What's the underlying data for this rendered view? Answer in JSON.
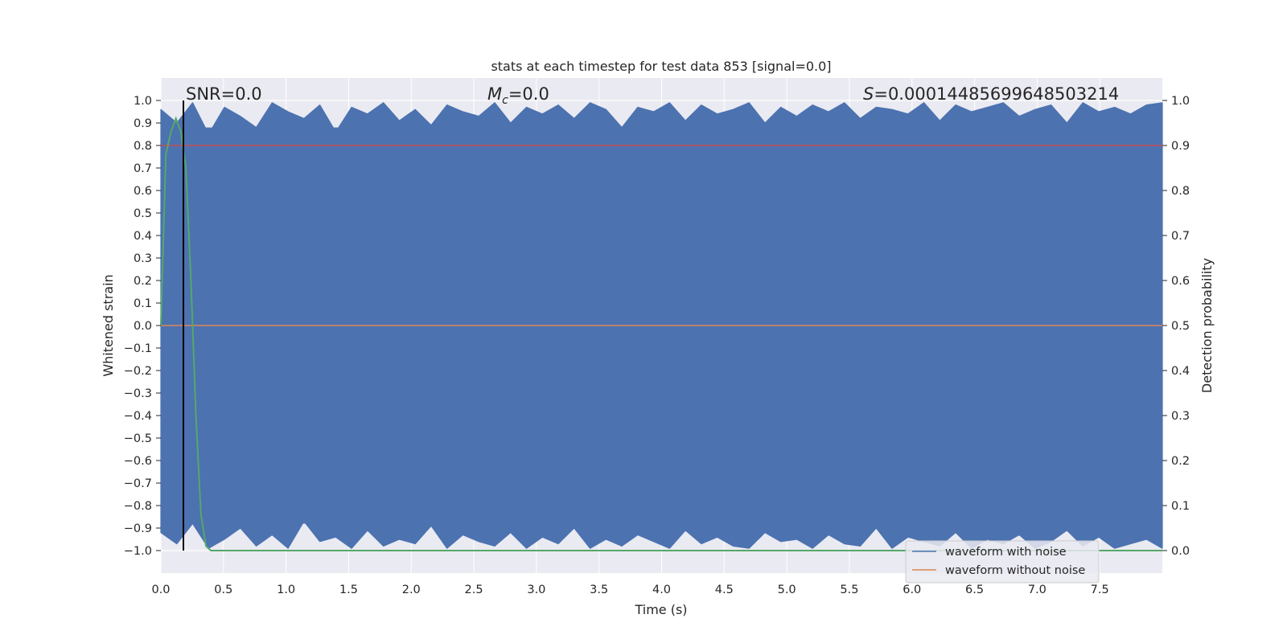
{
  "chart_data": {
    "type": "line",
    "title": "stats at each timestep for test data 853 [signal=0.0]",
    "xlabel": "Time (s)",
    "ylabel": "Whitened strain",
    "ylabel_right": "Detection probability",
    "xlim": [
      0.0,
      8.0
    ],
    "ylim": [
      -1.1,
      1.1
    ],
    "ylim_right": [
      -0.05,
      1.05
    ],
    "x_ticks": [
      "0.0",
      "0.5",
      "1.0",
      "1.5",
      "2.0",
      "2.5",
      "3.0",
      "3.5",
      "4.0",
      "4.5",
      "5.0",
      "5.5",
      "6.0",
      "6.5",
      "7.0",
      "7.5"
    ],
    "y_ticks": [
      "1.0",
      "0.9",
      "0.8",
      "0.7",
      "0.6",
      "0.5",
      "0.4",
      "0.3",
      "0.2",
      "0.1",
      "0.0",
      "−0.1",
      "−0.2",
      "−0.3",
      "−0.4",
      "−0.5",
      "−0.6",
      "−0.7",
      "−0.8",
      "−0.9",
      "−1.0"
    ],
    "y_right_ticks": [
      "1.0",
      "0.9",
      "0.8",
      "0.7",
      "0.6",
      "0.5",
      "0.4",
      "0.3",
      "0.2",
      "0.1",
      "0.0"
    ],
    "grid": true,
    "legend_position": "bottom-right",
    "annotations": {
      "snr": "SNR=0.0",
      "mc_symbol": "M",
      "mc_sub": "c",
      "mc_value": "=0.0",
      "s_symbol": "S",
      "s_value": "=0.00014485699648503214"
    },
    "series": [
      {
        "name": "waveform with noise",
        "axis": "left",
        "color": "#4c72b0",
        "note_range": [
          -1.0,
          1.0
        ],
        "peaks_top": [
          0.96,
          0.9,
          0.99,
          0.85,
          0.97,
          0.93,
          0.88,
          0.99,
          0.95,
          0.92,
          0.98,
          0.86,
          0.97,
          0.94,
          0.99,
          0.91,
          0.96,
          0.89,
          0.98,
          0.95,
          0.93,
          0.99,
          0.9,
          0.97,
          0.94,
          0.98,
          0.92,
          0.99,
          0.96,
          0.88,
          0.97,
          0.95,
          0.99,
          0.91,
          0.98,
          0.94,
          0.96,
          0.99,
          0.9,
          0.97,
          0.93,
          0.98,
          0.95,
          0.99,
          0.92,
          0.97,
          0.96,
          0.94,
          0.99,
          0.91,
          0.98,
          0.95,
          0.97,
          0.99,
          0.93,
          0.96,
          0.98,
          0.9,
          0.99,
          0.95,
          0.97,
          0.94,
          0.98,
          0.99
        ],
        "peaks_bottom": [
          -0.92,
          -0.97,
          -0.88,
          -0.99,
          -0.95,
          -0.9,
          -0.98,
          -0.93,
          -0.99,
          -0.87,
          -0.96,
          -0.94,
          -0.99,
          -0.91,
          -0.98,
          -0.95,
          -0.97,
          -0.89,
          -0.99,
          -0.93,
          -0.96,
          -0.98,
          -0.92,
          -0.99,
          -0.94,
          -0.97,
          -0.9,
          -0.99,
          -0.95,
          -0.98,
          -0.93,
          -0.96,
          -0.99,
          -0.91,
          -0.97,
          -0.94,
          -0.98,
          -0.99,
          -0.92,
          -0.96,
          -0.95,
          -0.99,
          -0.93,
          -0.97,
          -0.98,
          -0.9,
          -0.99,
          -0.94,
          -0.96,
          -0.98,
          -0.92,
          -0.99,
          -0.95,
          -0.97,
          -0.93,
          -0.99,
          -0.96,
          -0.91,
          -0.98,
          -0.94,
          -0.99,
          -0.97,
          -0.95,
          -0.99
        ]
      },
      {
        "name": "waveform without noise",
        "axis": "left",
        "color": "#dd8452",
        "x": [
          0.0,
          8.0
        ],
        "y": [
          0.0,
          0.0
        ]
      },
      {
        "name": "",
        "axis": "right",
        "color": "#55a868",
        "x": [
          0.0,
          0.04,
          0.08,
          0.12,
          0.16,
          0.2,
          0.24,
          0.28,
          0.32,
          0.36,
          0.4,
          8.0
        ],
        "y": [
          0.5,
          0.88,
          0.93,
          0.96,
          0.93,
          0.85,
          0.6,
          0.3,
          0.08,
          0.01,
          0.0,
          0.0
        ]
      }
    ],
    "threshold_line": {
      "axis": "right",
      "y": 0.9,
      "color": "#c44e52"
    },
    "marker_line": {
      "x": 0.18,
      "color": "#000000"
    }
  }
}
